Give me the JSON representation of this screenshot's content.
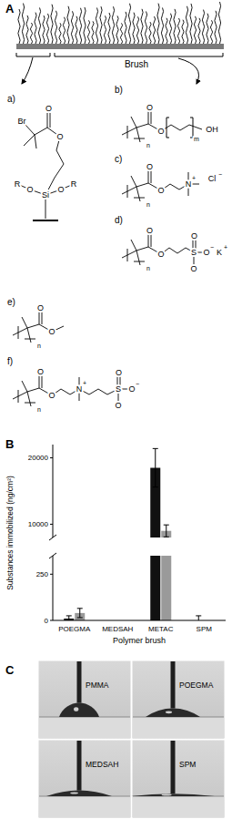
{
  "panel_a": {
    "label": "A",
    "brush_label": "Brush",
    "structures": [
      {
        "label": "a)",
        "atoms": [
          "Br",
          "O",
          "O",
          "Si",
          "O",
          "O",
          "R",
          "R"
        ]
      },
      {
        "label": "b)",
        "atoms": [
          "n",
          "O",
          "O",
          "m",
          "OH"
        ]
      },
      {
        "label": "c)",
        "atoms": [
          "n",
          "O",
          "O",
          "N",
          "+",
          "Cl",
          "−"
        ]
      },
      {
        "label": "d)",
        "atoms": [
          "n",
          "O",
          "O",
          "S",
          "O",
          "O",
          "O",
          "−",
          "K",
          "+"
        ]
      },
      {
        "label": "e)",
        "atoms": [
          "n",
          "O",
          "O"
        ]
      },
      {
        "label": "f)",
        "atoms": [
          "n",
          "O",
          "O",
          "N",
          "+",
          "S",
          "O",
          "O",
          "O",
          "−"
        ]
      }
    ]
  },
  "panel_b": {
    "label": "B"
  },
  "chart_data": {
    "type": "bar",
    "x_label": "Polymer brush",
    "y_label": "Substances immobilized (ng/cm²)",
    "categories": [
      "POEGMA",
      "MEDSAH",
      "METAC",
      "SPM"
    ],
    "series": [
      {
        "color": "#111111",
        "values": [
          10,
          0,
          18500,
          0
        ],
        "errors": [
          15,
          0,
          2900,
          25
        ]
      },
      {
        "color": "#9a9a9a",
        "values": [
          40,
          0,
          9000,
          0
        ],
        "errors": [
          25,
          0,
          900,
          0
        ]
      }
    ],
    "ylim": [
      [
        0,
        350
      ],
      [
        8000,
        22000
      ]
    ],
    "yticks": [
      0,
      250,
      10000,
      20000
    ]
  },
  "panel_c": {
    "label": "C",
    "images": [
      "PMMA",
      "POEGMA",
      "MEDSAH",
      "SPM"
    ]
  }
}
